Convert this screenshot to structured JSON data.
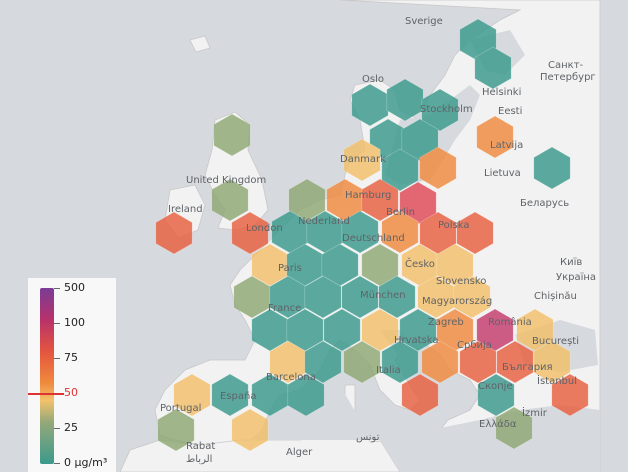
{
  "map": {
    "labels": {
      "sverige": "Sverige",
      "oslo": "Oslo",
      "stockholm": "Stockholm",
      "helsinki": "Helsinki",
      "st_petersburg_1": "Санкт-",
      "st_petersburg_2": "Петербург",
      "eesti": "Eesti",
      "latvija": "Latvija",
      "lietuva": "Lietuva",
      "danmark": "Danmark",
      "united_kingdom": "United Kingdom",
      "ireland": "Ireland",
      "hamburg": "Hamburg",
      "berlin": "Berlin",
      "belarus": "Беларусь",
      "nederland": "Nederland",
      "london": "London",
      "polska": "Polska",
      "deutschland": "Deutschland",
      "kyiv": "Київ",
      "ukraina": "Україна",
      "paris": "Paris",
      "cesko": "Česko",
      "slovensko": "Slovensko",
      "munchen": "München",
      "chisinau": "Chișinău",
      "france": "France",
      "magyarorszag": "Magyarország",
      "zagreb": "Zagreb",
      "romania": "România",
      "bucuresti": "București",
      "hrvatska": "Hrvatska",
      "srbija": "Србија",
      "bulgaria": "България",
      "italia": "Italia",
      "barcelona": "Barcelona",
      "istanbul": "İstanbul",
      "portugal": "Portugal",
      "espana": "España",
      "skopje": "Скопје",
      "izmir": "İzmir",
      "ellada": "Ελλάδα",
      "rabat_1": "Rabat",
      "rabat_2": "الرباط",
      "alger": "Alger",
      "tunis": "تونس"
    }
  },
  "legend": {
    "ticks": [
      "500",
      "100",
      "75",
      "50",
      "25",
      "0 µg/m³"
    ],
    "highlight": "50"
  },
  "colors": {
    "water": "#d6d9de",
    "land": "#f2f2f2",
    "teal": "#3a9a8c",
    "green": "#8fa874",
    "yellow": "#f2c06a",
    "orange": "#f08a3e",
    "redorange": "#e8603f",
    "red": "#e04858",
    "magenta": "#c63c6e",
    "highlight": "#d33333"
  }
}
